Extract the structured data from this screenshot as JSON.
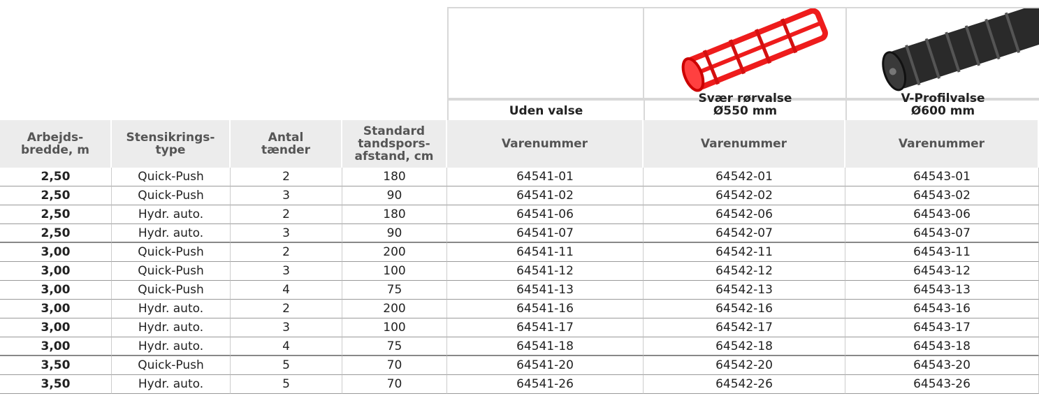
{
  "products": [
    {
      "name": "Uden valse"
    },
    {
      "name": "Svær rørvalse",
      "size": "Ø550 mm"
    },
    {
      "name": "V-Profilvalse",
      "size": "Ø600 mm"
    }
  ],
  "header": [
    [
      "Arbejds-",
      "bredde, m"
    ],
    [
      "Stensikrings-",
      "type"
    ],
    [
      "Antal",
      "tænder"
    ],
    [
      "Standard",
      "tandspors-",
      "afstand, cm"
    ],
    [
      "Varenummer"
    ],
    [
      "Varenummer"
    ],
    [
      "Varenummer"
    ]
  ],
  "rows": [
    [
      "2,50",
      "Quick-Push",
      "2",
      "180",
      "64541-01",
      "64542-01",
      "64543-01"
    ],
    [
      "2,50",
      "Quick-Push",
      "3",
      "90",
      "64541-02",
      "64542-02",
      "64543-02"
    ],
    [
      "2,50",
      "Hydr. auto.",
      "2",
      "180",
      "64541-06",
      "64542-06",
      "64543-06"
    ],
    [
      "2,50",
      "Hydr. auto.",
      "3",
      "90",
      "64541-07",
      "64542-07",
      "64543-07"
    ],
    [
      "3,00",
      "Quick-Push",
      "2",
      "200",
      "64541-11",
      "64542-11",
      "64543-11"
    ],
    [
      "3,00",
      "Quick-Push",
      "3",
      "100",
      "64541-12",
      "64542-12",
      "64543-12"
    ],
    [
      "3,00",
      "Quick-Push",
      "4",
      "75",
      "64541-13",
      "64542-13",
      "64543-13"
    ],
    [
      "3,00",
      "Hydr. auto.",
      "2",
      "200",
      "64541-16",
      "64542-16",
      "64543-16"
    ],
    [
      "3,00",
      "Hydr. auto.",
      "3",
      "100",
      "64541-17",
      "64542-17",
      "64543-17"
    ],
    [
      "3,00",
      "Hydr. auto.",
      "4",
      "75",
      "64541-18",
      "64542-18",
      "64543-18"
    ],
    [
      "3,50",
      "Quick-Push",
      "5",
      "70",
      "64541-20",
      "64542-20",
      "64543-20"
    ],
    [
      "3,50",
      "Hydr. auto.",
      "5",
      "70",
      "64541-26",
      "64542-26",
      "64543-26"
    ]
  ]
}
